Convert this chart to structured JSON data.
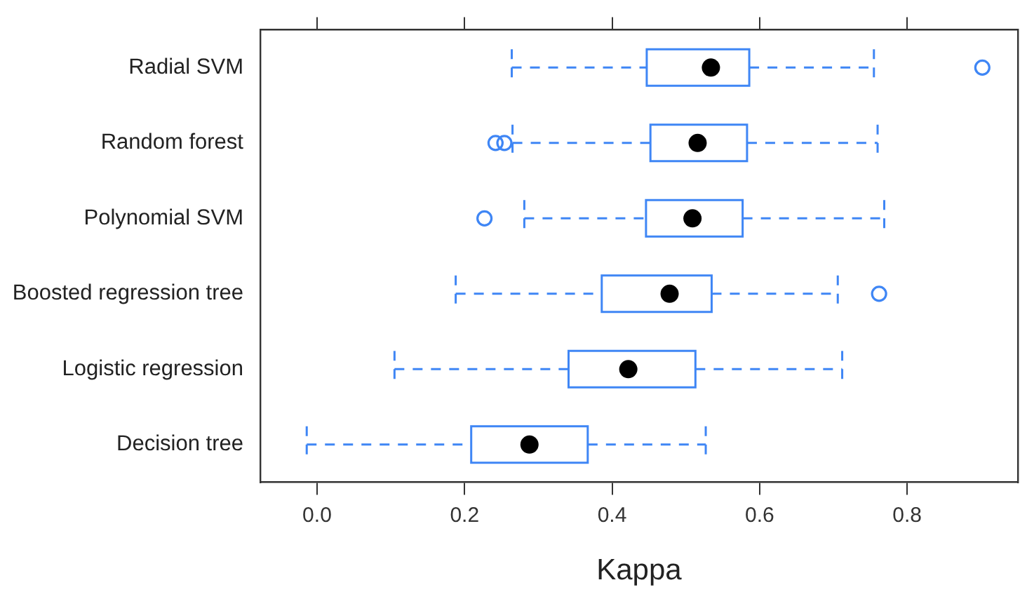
{
  "chart_data": {
    "type": "box",
    "orientation": "horizontal",
    "xlabel": "Kappa",
    "color": "#3f86f5",
    "categories": [
      "Radial SVM",
      "Random forest",
      "Polynomial SVM",
      "Boosted regression tree",
      "Logistic regression",
      "Decision tree"
    ],
    "boxes": [
      {
        "low": 0.264,
        "q1": 0.447,
        "median": 0.534,
        "q3": 0.586,
        "high": 0.755,
        "outliers": [
          0.902
        ]
      },
      {
        "low": 0.265,
        "q1": 0.452,
        "median": 0.516,
        "q3": 0.583,
        "high": 0.76,
        "outliers": [
          0.242,
          0.254
        ]
      },
      {
        "low": 0.281,
        "q1": 0.446,
        "median": 0.509,
        "q3": 0.577,
        "high": 0.769,
        "outliers": [
          0.227
        ]
      },
      {
        "low": 0.188,
        "q1": 0.386,
        "median": 0.478,
        "q3": 0.535,
        "high": 0.706,
        "outliers": [
          0.762
        ]
      },
      {
        "low": 0.105,
        "q1": 0.341,
        "median": 0.422,
        "q3": 0.513,
        "high": 0.712
      },
      {
        "low": -0.014,
        "q1": 0.209,
        "median": 0.288,
        "q3": 0.367,
        "high": 0.527
      }
    ],
    "xlim": [
      -0.077,
      0.95
    ],
    "xticks": [
      {
        "value": 0,
        "label": "0.0"
      },
      0.2,
      0.4,
      0.6,
      0.8
    ]
  }
}
